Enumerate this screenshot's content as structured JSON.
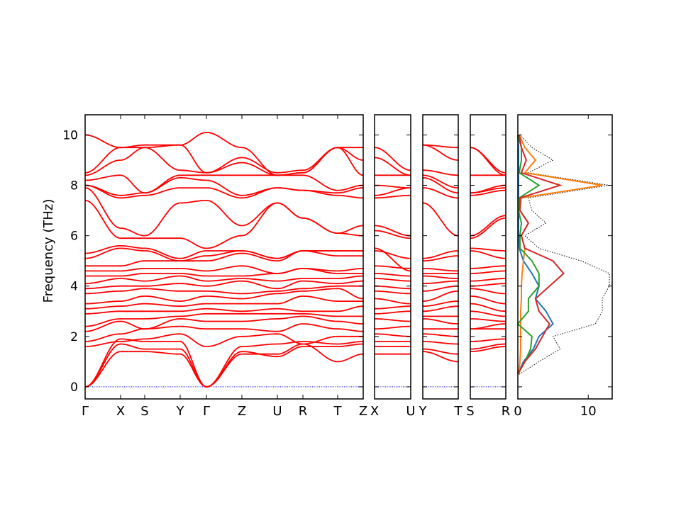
{
  "chart_data": {
    "type": "line",
    "ylabel": "Frequency (THz)",
    "ylim": [
      -0.48,
      10.8
    ],
    "yticks": [
      0,
      2,
      4,
      6,
      8,
      10
    ],
    "band_color": "#ff0000",
    "zero_line_color": "#0000ff",
    "panels": [
      {
        "labels": [
          "Γ",
          "X",
          "S",
          "Y",
          "Γ",
          "Z",
          "U",
          "R",
          "T",
          "Z"
        ],
        "distances": [
          0,
          0.5,
          0.84,
          1.34,
          1.71,
          2.21,
          2.71,
          3.07,
          3.56,
          3.92
        ],
        "bands": [
          [
            0,
            1.4,
            1.4,
            1.3,
            0,
            1.3,
            1.3,
            1.7,
            1.0,
            1.3
          ],
          [
            0,
            1.7,
            1.5,
            1.5,
            0,
            1.4,
            1.2,
            1.6,
            1.6,
            1.7
          ],
          [
            0,
            1.9,
            1.8,
            1.8,
            0,
            1.6,
            1.7,
            1.8,
            1.7,
            1.8
          ],
          [
            1.6,
            1.8,
            1.9,
            2.1,
            1.6,
            2.0,
            2.1,
            1.7,
            2.0,
            2.0
          ],
          [
            1.8,
            2.1,
            2.3,
            2.4,
            2.3,
            2.3,
            2.2,
            2.5,
            2.3,
            2.2
          ],
          [
            2.2,
            2.6,
            2.3,
            2.7,
            2.6,
            2.6,
            2.7,
            2.8,
            2.6,
            2.5
          ],
          [
            2.4,
            2.7,
            2.7,
            2.8,
            2.9,
            2.9,
            2.9,
            2.9,
            2.8,
            2.8
          ],
          [
            2.9,
            3.0,
            3.0,
            3.0,
            3.1,
            3.0,
            3.1,
            3.0,
            3.0,
            3.2
          ],
          [
            3.1,
            3.2,
            3.3,
            3.2,
            3.3,
            3.3,
            3.3,
            3.6,
            3.4,
            3.4
          ],
          [
            3.3,
            3.4,
            3.6,
            3.4,
            3.6,
            3.5,
            3.7,
            3.8,
            3.9,
            3.5
          ],
          [
            3.7,
            3.8,
            3.9,
            3.8,
            3.8,
            3.7,
            3.8,
            3.9,
            4.0,
            4.0
          ],
          [
            3.9,
            4.0,
            4.0,
            4.1,
            4.0,
            4.2,
            3.9,
            4.2,
            4.1,
            4.2
          ],
          [
            4.1,
            4.3,
            4.2,
            4.4,
            4.2,
            4.3,
            4.2,
            4.3,
            4.3,
            4.4
          ],
          [
            4.4,
            4.4,
            4.5,
            4.5,
            4.4,
            4.4,
            4.5,
            4.7,
            4.5,
            4.5
          ],
          [
            4.6,
            4.6,
            4.7,
            4.7,
            4.6,
            4.8,
            4.5,
            4.7,
            4.6,
            4.7
          ],
          [
            4.8,
            4.8,
            5.0,
            5.0,
            5.0,
            5.3,
            5.0,
            5.4,
            5.2,
            5.2
          ],
          [
            5.1,
            5.5,
            5.4,
            5.0,
            5.2,
            5.4,
            5.1,
            5.4,
            5.4,
            5.4
          ],
          [
            5.3,
            5.6,
            5.5,
            5.1,
            5.4,
            5.4,
            5.1,
            5.4,
            5.4,
            5.4
          ],
          [
            7.4,
            5.9,
            5.9,
            5.9,
            5.5,
            6.0,
            7.3,
            6.7,
            6.1,
            6.0
          ],
          [
            7.9,
            6.3,
            6.0,
            7.3,
            7.4,
            6.4,
            7.3,
            6.7,
            6.1,
            6.4
          ],
          [
            8.0,
            7.5,
            7.6,
            7.9,
            7.9,
            7.5,
            7.9,
            7.8,
            7.6,
            7.5
          ],
          [
            8.0,
            7.6,
            7.7,
            8.3,
            8.2,
            7.6,
            7.9,
            7.8,
            7.7,
            7.9
          ],
          [
            8.2,
            8.4,
            7.7,
            8.4,
            8.4,
            8.4,
            8.4,
            8.4,
            7.8,
            8.0
          ],
          [
            8.4,
            9.0,
            9.5,
            8.6,
            8.5,
            9.1,
            8.5,
            8.6,
            9.5,
            8.4
          ],
          [
            8.5,
            9.5,
            9.5,
            9.6,
            10.1,
            9.5,
            8.4,
            8.5,
            9.5,
            9.0
          ],
          [
            10.0,
            9.5,
            9.6,
            9.6,
            8.5,
            8.9,
            8.4,
            8.5,
            9.5,
            9.5
          ]
        ]
      },
      {
        "labels": [
          "X",
          "U"
        ],
        "distances": [
          0,
          0.51
        ],
        "bands": [
          [
            1.3,
            1.3
          ],
          [
            1.6,
            1.6
          ],
          [
            1.8,
            1.8
          ],
          [
            2.1,
            2.0
          ],
          [
            2.3,
            2.4
          ],
          [
            2.7,
            2.6
          ],
          [
            2.9,
            3.0
          ],
          [
            3.1,
            3.2
          ],
          [
            3.5,
            3.3
          ],
          [
            3.8,
            3.7
          ],
          [
            4.0,
            3.9
          ],
          [
            4.3,
            4.2
          ],
          [
            4.5,
            4.4
          ],
          [
            4.8,
            4.7
          ],
          [
            5.4,
            5.1
          ],
          [
            5.5,
            4.6
          ],
          [
            6.2,
            5.9
          ],
          [
            6.4,
            6.0
          ],
          [
            7.5,
            7.6
          ],
          [
            7.6,
            7.9
          ],
          [
            8.0,
            7.9
          ],
          [
            8.4,
            8.4
          ],
          [
            9.1,
            8.4
          ],
          [
            9.5,
            8.6
          ]
        ]
      },
      {
        "labels": [
          "Y",
          "T"
        ],
        "distances": [
          0,
          0.5
        ],
        "bands": [
          [
            1.4,
            1.0
          ],
          [
            1.5,
            1.3
          ],
          [
            1.8,
            1.7
          ],
          [
            2.1,
            2.0
          ],
          [
            2.3,
            2.3
          ],
          [
            2.7,
            2.5
          ],
          [
            2.8,
            2.8
          ],
          [
            3.0,
            3.2
          ],
          [
            3.2,
            3.4
          ],
          [
            3.4,
            3.8
          ],
          [
            3.8,
            4.0
          ],
          [
            4.1,
            4.2
          ],
          [
            4.4,
            4.3
          ],
          [
            4.5,
            4.5
          ],
          [
            4.7,
            4.6
          ],
          [
            5.0,
            5.2
          ],
          [
            5.1,
            5.4
          ],
          [
            7.3,
            6.0
          ],
          [
            7.9,
            7.5
          ],
          [
            8.3,
            7.7
          ],
          [
            8.4,
            7.9
          ],
          [
            8.6,
            8.4
          ],
          [
            9.6,
            9.0
          ],
          [
            9.6,
            9.5
          ]
        ]
      },
      {
        "labels": [
          "S",
          "R"
        ],
        "distances": [
          0,
          0.5
        ],
        "bands": [
          [
            1.4,
            1.6
          ],
          [
            1.5,
            1.7
          ],
          [
            1.8,
            1.9
          ],
          [
            2.3,
            2.3
          ],
          [
            2.3,
            2.5
          ],
          [
            2.7,
            2.6
          ],
          [
            3.0,
            2.8
          ],
          [
            3.3,
            3.0
          ],
          [
            3.6,
            3.3
          ],
          [
            3.9,
            3.7
          ],
          [
            4.0,
            4.1
          ],
          [
            4.2,
            4.3
          ],
          [
            4.5,
            4.6
          ],
          [
            4.7,
            4.8
          ],
          [
            5.4,
            5.1
          ],
          [
            5.5,
            5.4
          ],
          [
            5.9,
            6.7
          ],
          [
            6.0,
            6.8
          ],
          [
            7.6,
            7.8
          ],
          [
            7.7,
            7.9
          ],
          [
            7.7,
            8.0
          ],
          [
            8.4,
            8.4
          ],
          [
            9.5,
            8.4
          ],
          [
            9.5,
            8.5
          ]
        ]
      }
    ],
    "dos": {
      "xlim": [
        0,
        13.4
      ],
      "xticks": [
        0,
        10
      ],
      "frequencies": [
        0.5,
        1,
        1.5,
        2,
        2.5,
        3,
        3.5,
        4,
        4.5,
        5,
        5.5,
        6,
        6.5,
        7,
        7.5,
        8,
        8.5,
        9,
        9.5,
        10
      ],
      "series": [
        {
          "color": "#000000",
          "style": "dotted",
          "values": [
            0.2,
            3,
            6,
            5,
            11,
            12,
            12,
            13,
            13,
            9,
            3,
            1,
            4,
            2,
            1.5,
            13,
            1.5,
            5,
            2,
            0.3
          ]
        },
        {
          "color": "#1f77b4",
          "style": "solid",
          "values": [
            0,
            0.8,
            2.2,
            3,
            5,
            4,
            2.5,
            3,
            2,
            0.8,
            0.2,
            0.1,
            0.1,
            0.1,
            0.1,
            0.1,
            0.1,
            0.1,
            0.1,
            0
          ]
        },
        {
          "color": "#ff7f0e",
          "style": "solid",
          "values": [
            0.1,
            0.3,
            0.4,
            0.4,
            0.4,
            0.4,
            0.5,
            0.5,
            0.6,
            0.8,
            1,
            0.5,
            1.5,
            0.3,
            0.5,
            12,
            1,
            2.5,
            1,
            0.2
          ]
        },
        {
          "color": "#2ca02c",
          "style": "solid",
          "values": [
            0,
            1,
            1.8,
            2,
            0,
            1.5,
            1.5,
            3,
            3,
            2,
            0.3,
            0.3,
            0.5,
            0.1,
            0.2,
            3,
            0.2,
            0.5,
            0.5,
            0
          ]
        },
        {
          "color": "#d62728",
          "style": "solid",
          "values": [
            0,
            1,
            2.5,
            3.5,
            4.5,
            3,
            2.5,
            4.5,
            6.5,
            5,
            1,
            0.5,
            1.5,
            0.3,
            0.3,
            6,
            0.5,
            1.2,
            0.5,
            0.2
          ]
        }
      ]
    }
  }
}
